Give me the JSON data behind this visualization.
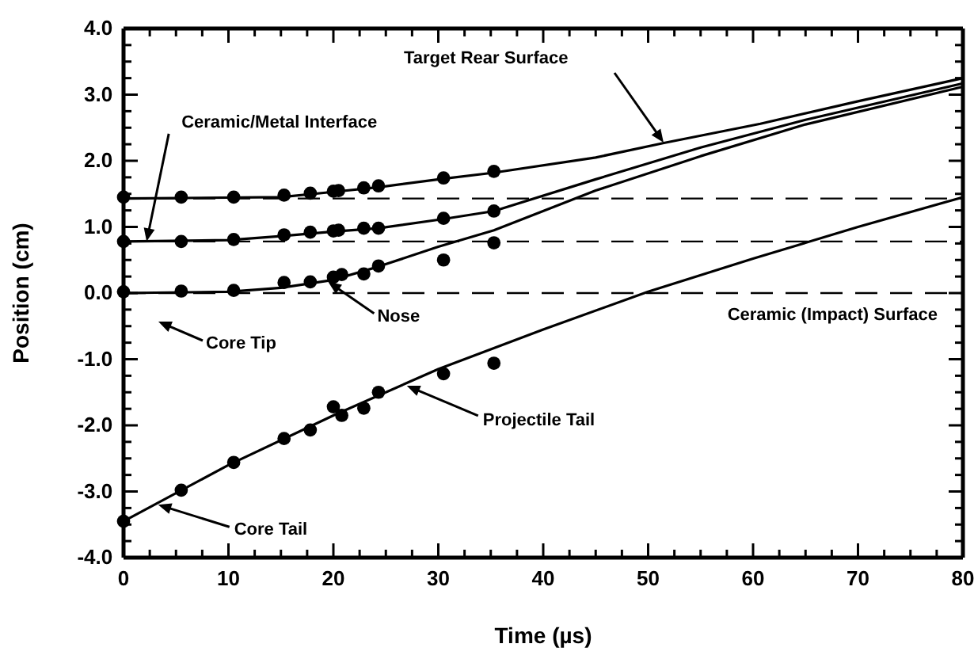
{
  "chart_data": {
    "type": "scatter",
    "xlabel": "Time (µs)",
    "ylabel": "Position (cm)",
    "xlim": [
      0,
      80
    ],
    "ylim": [
      -4,
      4
    ],
    "xticks": [
      0,
      {
        "value": 2.5,
        "label": null
      },
      {
        "value": 5,
        "label": null
      },
      {
        "value": 7.5,
        "label": null
      },
      10,
      {
        "value": 12.5,
        "label": null
      },
      {
        "value": 15,
        "label": null
      },
      {
        "value": 17.5,
        "label": null
      },
      20,
      {
        "value": 22.5,
        "label": null
      },
      {
        "value": 25,
        "label": null
      },
      {
        "value": 27.5,
        "label": null
      },
      30,
      {
        "value": 32.5,
        "label": null
      },
      {
        "value": 35,
        "label": null
      },
      {
        "value": 37.5,
        "label": null
      },
      40,
      {
        "value": 42.5,
        "label": null
      },
      {
        "value": 45,
        "label": null
      },
      {
        "value": 47.5,
        "label": null
      },
      50,
      {
        "value": 52.5,
        "label": null
      },
      {
        "value": 55,
        "label": null
      },
      {
        "value": 57.5,
        "label": null
      },
      60,
      {
        "value": 62.5,
        "label": null
      },
      {
        "value": 65,
        "label": null
      },
      {
        "value": 67.5,
        "label": null
      },
      70,
      {
        "value": 72.5,
        "label": null
      },
      {
        "value": 75,
        "label": null
      },
      {
        "value": 77.5,
        "label": null
      },
      80
    ],
    "yticks": [
      {
        "value": -4,
        "label": "-4.0"
      },
      {
        "value": -3.75,
        "label": null
      },
      {
        "value": -3.5,
        "label": null
      },
      {
        "value": -3.25,
        "label": null
      },
      {
        "value": -3,
        "label": "-3.0"
      },
      {
        "value": -2.75,
        "label": null
      },
      {
        "value": -2.5,
        "label": null
      },
      {
        "value": -2.25,
        "label": null
      },
      {
        "value": -2,
        "label": "-2.0"
      },
      {
        "value": -1.75,
        "label": null
      },
      {
        "value": -1.5,
        "label": null
      },
      {
        "value": -1.25,
        "label": null
      },
      {
        "value": -1,
        "label": "-1.0"
      },
      {
        "value": -0.75,
        "label": null
      },
      {
        "value": -0.5,
        "label": null
      },
      {
        "value": -0.25,
        "label": null
      },
      {
        "value": 0,
        "label": "0.0"
      },
      {
        "value": 0.25,
        "label": null
      },
      {
        "value": 0.5,
        "label": null
      },
      {
        "value": 0.75,
        "label": null
      },
      {
        "value": 1,
        "label": "1.0"
      },
      {
        "value": 1.25,
        "label": null
      },
      {
        "value": 1.5,
        "label": null
      },
      {
        "value": 1.75,
        "label": null
      },
      {
        "value": 2,
        "label": "2.0"
      },
      {
        "value": 2.25,
        "label": null
      },
      {
        "value": 2.5,
        "label": null
      },
      {
        "value": 2.75,
        "label": null
      },
      {
        "value": 3,
        "label": "3.0"
      },
      {
        "value": 3.25,
        "label": null
      },
      {
        "value": 3.5,
        "label": null
      },
      {
        "value": 3.75,
        "label": null
      },
      {
        "value": 4,
        "label": "4.0"
      }
    ],
    "grid": false,
    "series": [
      {
        "marker": "circle",
        "color": "#000000",
        "x": [
          0,
          5.5,
          10.5,
          15.3,
          17.8,
          20,
          20.5,
          22.9,
          24.3,
          30.5,
          35.3
        ],
        "values": [
          1.45,
          1.45,
          1.45,
          1.48,
          1.51,
          1.54,
          1.55,
          1.59,
          1.62,
          1.74,
          1.84
        ]
      },
      {
        "marker": "circle",
        "color": "#000000",
        "x": [
          0,
          5.5,
          10.5,
          15.3,
          17.8,
          20,
          20.5,
          22.9,
          24.3,
          30.5,
          35.3
        ],
        "values": [
          0.78,
          0.78,
          0.81,
          0.88,
          0.92,
          0.94,
          0.95,
          0.98,
          0.98,
          1.13,
          1.24
        ]
      },
      {
        "marker": "circle",
        "color": "#000000",
        "x": [
          0,
          5.5,
          10.5,
          15.3,
          17.8,
          20,
          20.8,
          22.9,
          24.3,
          30.5,
          35.3
        ],
        "values": [
          0.02,
          0.03,
          0.04,
          0.16,
          0.17,
          0.24,
          0.28,
          0.29,
          0.41,
          0.5,
          0.76
        ]
      },
      {
        "marker": "circle",
        "color": "#000000",
        "x": [
          0,
          5.5,
          10.5,
          15.3,
          17.8,
          20,
          20.8,
          22.9,
          24.3,
          30.5,
          35.3
        ],
        "values": [
          -3.45,
          -2.98,
          -2.56,
          -2.2,
          -2.07,
          -1.72,
          -1.85,
          -1.74,
          -1.5,
          -1.22,
          -1.06
        ]
      },
      {
        "type": "line",
        "marker": "none",
        "color": "#000000",
        "x": [
          0,
          15,
          20,
          24.3,
          30.5,
          35.3,
          45,
          51.5,
          60.7,
          70,
          80
        ],
        "values": [
          1.43,
          1.45,
          1.53,
          1.6,
          1.73,
          1.82,
          2.05,
          2.27,
          2.56,
          2.9,
          3.25
        ]
      },
      {
        "type": "line",
        "marker": "none",
        "color": "#000000",
        "x": [
          0,
          10,
          15,
          20,
          24.3,
          30.5,
          35.3,
          45,
          55,
          65,
          80
        ],
        "values": [
          0.78,
          0.8,
          0.86,
          0.93,
          0.98,
          1.12,
          1.24,
          1.72,
          2.2,
          2.62,
          3.17
        ]
      },
      {
        "type": "line",
        "marker": "none",
        "color": "#000000",
        "x": [
          0,
          10,
          15,
          20,
          24.3,
          30,
          35.3,
          45,
          55,
          65,
          80
        ],
        "values": [
          0,
          0.02,
          0.08,
          0.2,
          0.4,
          0.7,
          0.95,
          1.55,
          2.07,
          2.55,
          3.12
        ]
      },
      {
        "type": "line",
        "marker": "none",
        "color": "#000000",
        "x": [
          0,
          10,
          20,
          30,
          40,
          50,
          60,
          70,
          80
        ],
        "values": [
          -3.45,
          -2.6,
          -1.85,
          -1.15,
          -0.55,
          0.02,
          0.52,
          1.0,
          1.45
        ]
      }
    ],
    "ref_lines": [
      {
        "axis": "y",
        "value": 1.43,
        "line_style": "dashed"
      },
      {
        "axis": "y",
        "value": 0.78,
        "line_style": "dashed"
      },
      {
        "axis": "y",
        "value": 0,
        "line_style": "dashed"
      }
    ],
    "annotations": [
      "Target Rear Surface",
      {
        "text": "Ceramic/Metal Interface",
        "x": 2.2,
        "y": 0.78
      },
      {
        "text": "Nose",
        "x": 19.5,
        "y": 0.17
      },
      "Core Tip",
      {
        "text": "Projectile Tail",
        "x": 27,
        "y": -1.4
      },
      {
        "text": "Core Tail",
        "x": 3.3,
        "y": -3.2
      },
      {
        "text": "Ceramic (Impact) Surface",
        "x": 80,
        "y": 0
      }
    ]
  }
}
